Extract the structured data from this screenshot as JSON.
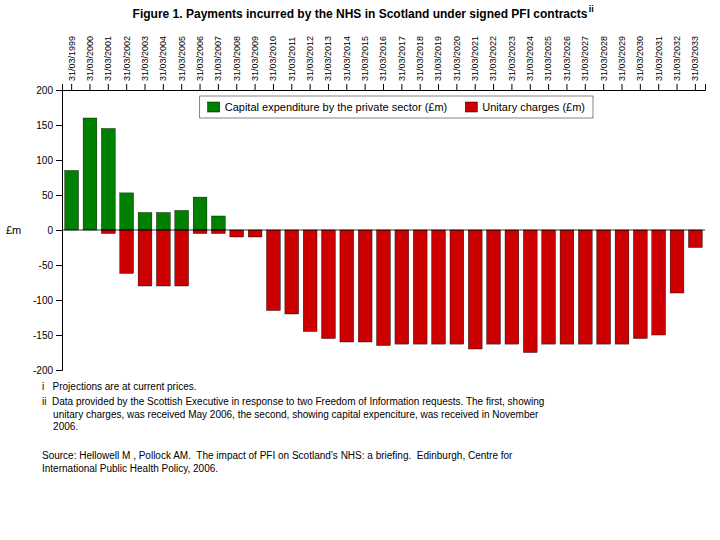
{
  "chart_data": {
    "type": "bar",
    "title": "Figure 1. Payments incurred by the NHS in Scotland under signed PFI contracts",
    "y_label": "£m",
    "categories": [
      "31/03/1999",
      "31/03/2000",
      "31/03/2001",
      "31/03/2002",
      "31/03/2003",
      "31/03/2004",
      "31/03/2005",
      "31/03/2006",
      "31/03/2007",
      "31/03/2008",
      "31/03/2009",
      "31/03/2010",
      "31/03/2011",
      "31/03/2012",
      "31/03/2013",
      "31/03/2014",
      "31/03/2015",
      "31/03/2016",
      "31/03/2017",
      "31/03/2018",
      "31/03/2019",
      "31/03/2020",
      "31/03/2021",
      "31/03/2022",
      "31/03/2023",
      "31/03/2024",
      "31/03/2025",
      "31/03/2026",
      "31/03/2027",
      "31/03/2028",
      "31/03/2029",
      "31/03/2030",
      "31/03/2031",
      "31/03/2032",
      "31/03/2033"
    ],
    "series": [
      {
        "name": "Capital expenditure by the private sector (£m)",
        "color": "#008000",
        "values": [
          85,
          160,
          145,
          53,
          25,
          25,
          28,
          47,
          20,
          0,
          0,
          0,
          0,
          0,
          0,
          0,
          0,
          0,
          0,
          0,
          0,
          0,
          0,
          0,
          0,
          0,
          0,
          0,
          0,
          0,
          0,
          0,
          0,
          0,
          0
        ]
      },
      {
        "name": "Unitary charges (£m)",
        "color": "#cc0000",
        "values": [
          0,
          0,
          -5,
          -62,
          -80,
          -80,
          -80,
          -5,
          -5,
          -10,
          -10,
          -115,
          -120,
          -145,
          -155,
          -160,
          -160,
          -165,
          -163,
          -163,
          -163,
          -163,
          -170,
          -163,
          -163,
          -175,
          -163,
          -163,
          -163,
          -163,
          -163,
          -155,
          -150,
          -90,
          -25
        ]
      }
    ],
    "stacked": true,
    "legend": "top",
    "ylim": [
      -200,
      200
    ],
    "yticks": [
      -200,
      -150,
      -100,
      -50,
      0,
      50,
      100,
      150,
      200
    ],
    "annotations": [
      "ii",
      "i   Projections are at current prices.",
      "ii  Data provided by the Scottish Executive in response to two Freedom of Information requests. The first, showing\n    unitary charges, was received May 2006, the second, showing capital expenciture, was received in November\n    2006.",
      "Source: Hellowell M , Pollock AM.  The impact of PFI on Scotland’s NHS: a briefing.  Edinburgh, Centre for\nInternational Public Health Policy, 2006."
    ]
  }
}
